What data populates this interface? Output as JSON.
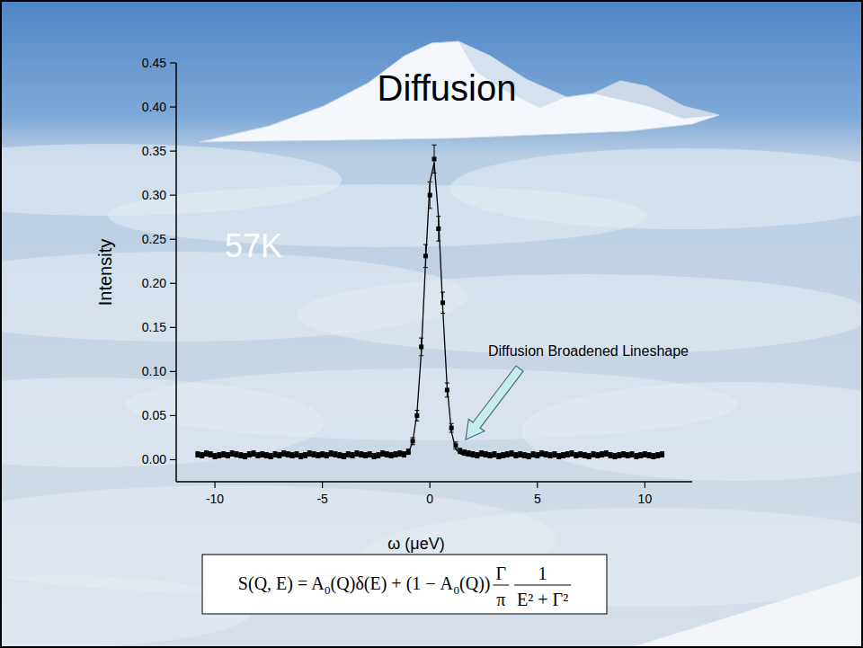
{
  "chart_data": {
    "type": "scatter",
    "title": "Diffusion",
    "x_label": "ω (μeV)",
    "y_label": "Intensity",
    "annotations": [
      {
        "text": "57K"
      },
      {
        "text": "Diffusion Broadened Lineshape"
      }
    ],
    "formula": {
      "lhs": "S(Q, E) = A",
      "sub1": "0",
      "mid": "(Q)δ(E) + (1 − A",
      "sub2": "0",
      "mid2": "(Q))",
      "frac1_num": "Γ",
      "frac1_den": "π",
      "frac2_num": "1",
      "frac2_den": "E² + Γ²"
    },
    "xlim": [
      -11.8,
      12.2
    ],
    "ylim": [
      -0.025,
      0.45
    ],
    "xticks": [
      -10,
      -5,
      0,
      5,
      10
    ],
    "yticks": [
      {
        "value": 0,
        "label": "0.00"
      },
      0.05,
      {
        "value": 0.1,
        "label": "0.10"
      },
      0.15,
      {
        "value": 0.2,
        "label": "0.20"
      },
      0.25,
      {
        "value": 0.3,
        "label": "0.30"
      },
      0.35,
      {
        "value": 0.4,
        "label": "0.40"
      },
      0.45
    ],
    "grid": false,
    "x": [
      -10.8,
      -10.6,
      -10.4,
      -10.2,
      -10,
      -9.8,
      -9.6,
      -9.4,
      -9.2,
      -9,
      -8.8,
      -8.6,
      -8.4,
      -8.2,
      -8,
      -7.8,
      -7.6,
      -7.4,
      -7.2,
      -7,
      -6.8,
      -6.6,
      -6.4,
      -6.2,
      -6,
      -5.8,
      -5.6,
      -5.4,
      -5.2,
      -5,
      -4.8,
      -4.6,
      -4.4,
      -4.2,
      -4,
      -3.8,
      -3.6,
      -3.4,
      -3.2,
      -3,
      -2.8,
      -2.6,
      -2.4,
      -2.2,
      -2,
      -1.8,
      -1.6,
      -1.4,
      -1.2,
      -1,
      -0.8,
      -0.6,
      -0.4,
      -0.2,
      0,
      0.2,
      0.4,
      0.6,
      0.8,
      1,
      1.2,
      1.4,
      1.6,
      1.8,
      2,
      2.2,
      2.4,
      2.6,
      2.8,
      3,
      3.2,
      3.4,
      3.6,
      3.8,
      4,
      4.2,
      4.4,
      4.6,
      4.8,
      5,
      5.2,
      5.4,
      5.6,
      5.8,
      6,
      6.2,
      6.4,
      6.6,
      6.8,
      7,
      7.2,
      7.4,
      7.6,
      7.8,
      8,
      8.2,
      8.4,
      8.6,
      8.8,
      9,
      9.2,
      9.4,
      9.6,
      9.8,
      10,
      10.2,
      10.4,
      10.6,
      10.8
    ],
    "series": [
      {
        "type": "scatter",
        "marker": "square",
        "color": "#000000",
        "values": [
          0.006,
          0.005,
          0.007,
          0.006,
          0.004,
          0.005,
          0.006,
          0.005,
          0.007,
          0.006,
          0.005,
          0.004,
          0.006,
          0.007,
          0.005,
          0.006,
          0.005,
          0.004,
          0.006,
          0.005,
          0.007,
          0.006,
          0.005,
          0.006,
          0.004,
          0.005,
          0.007,
          0.006,
          0.005,
          0.006,
          0.005,
          0.007,
          0.006,
          0.005,
          0.004,
          0.006,
          0.005,
          0.007,
          0.006,
          0.005,
          0.006,
          0.004,
          0.005,
          0.007,
          0.006,
          0.005,
          0.006,
          0.007,
          0.006,
          0.009,
          0.021,
          0.05,
          0.128,
          0.231,
          0.3,
          0.341,
          0.262,
          0.178,
          0.079,
          0.036,
          0.016,
          0.01,
          0.008,
          0.007,
          0.006,
          0.005,
          0.007,
          0.006,
          0.005,
          0.006,
          0.004,
          0.005,
          0.006,
          0.007,
          0.005,
          0.006,
          0.005,
          0.004,
          0.006,
          0.005,
          0.007,
          0.006,
          0.005,
          0.006,
          0.004,
          0.005,
          0.006,
          0.007,
          0.005,
          0.006,
          0.005,
          0.004,
          0.006,
          0.005,
          0.006,
          0.007,
          0.005,
          0.004,
          0.005,
          0.006,
          0.005,
          0.006,
          0.004,
          0.005,
          0.006,
          0.005,
          0.004,
          0.005,
          0.006
        ],
        "errors": [
          0.003,
          0.003,
          0.003,
          0.003,
          0.003,
          0.003,
          0.003,
          0.003,
          0.003,
          0.003,
          0.003,
          0.003,
          0.003,
          0.003,
          0.003,
          0.003,
          0.003,
          0.003,
          0.003,
          0.003,
          0.003,
          0.003,
          0.003,
          0.003,
          0.003,
          0.003,
          0.003,
          0.003,
          0.003,
          0.003,
          0.003,
          0.003,
          0.003,
          0.003,
          0.003,
          0.003,
          0.003,
          0.003,
          0.003,
          0.003,
          0.003,
          0.003,
          0.003,
          0.003,
          0.003,
          0.003,
          0.003,
          0.003,
          0.003,
          0.003,
          0.004,
          0.006,
          0.01,
          0.013,
          0.015,
          0.016,
          0.014,
          0.012,
          0.008,
          0.005,
          0.004,
          0.003,
          0.003,
          0.003,
          0.003,
          0.003,
          0.003,
          0.003,
          0.003,
          0.003,
          0.003,
          0.003,
          0.003,
          0.003,
          0.003,
          0.003,
          0.003,
          0.003,
          0.003,
          0.003,
          0.003,
          0.003,
          0.003,
          0.003,
          0.003,
          0.003,
          0.003,
          0.003,
          0.003,
          0.003,
          0.003,
          0.003,
          0.003,
          0.003,
          0.003,
          0.003,
          0.003,
          0.003,
          0.003,
          0.003,
          0.003,
          0.003,
          0.003,
          0.003,
          0.003,
          0.003,
          0.003,
          0.003,
          0.003
        ]
      },
      {
        "type": "line",
        "line_style": "solid",
        "color": "#000000",
        "values": [
          0.005,
          0.005,
          0.005,
          0.005,
          0.005,
          0.005,
          0.005,
          0.005,
          0.005,
          0.005,
          0.005,
          0.005,
          0.005,
          0.005,
          0.005,
          0.005,
          0.005,
          0.005,
          0.005,
          0.005,
          0.005,
          0.005,
          0.005,
          0.005,
          0.005,
          0.005,
          0.005,
          0.005,
          0.005,
          0.005,
          0.005,
          0.005,
          0.005,
          0.005,
          0.005,
          0.005,
          0.005,
          0.005,
          0.005,
          0.005,
          0.005,
          0.005,
          0.005,
          0.005,
          0.005,
          0.005,
          0.005,
          0.005,
          0.005,
          0.008,
          0.02,
          0.053,
          0.122,
          0.224,
          0.315,
          0.337,
          0.275,
          0.171,
          0.083,
          0.032,
          0.012,
          0.007,
          0.005,
          0.005,
          0.005,
          0.005,
          0.005,
          0.005,
          0.005,
          0.005,
          0.005,
          0.005,
          0.005,
          0.005,
          0.005,
          0.005,
          0.005,
          0.005,
          0.005,
          0.005,
          0.005,
          0.005,
          0.005,
          0.005,
          0.005,
          0.005,
          0.005,
          0.005,
          0.005,
          0.005,
          0.005,
          0.005,
          0.005,
          0.005,
          0.005,
          0.005,
          0.005,
          0.005,
          0.005,
          0.005,
          0.005,
          0.005,
          0.005,
          0.005,
          0.005,
          0.005,
          0.005,
          0.005,
          0.005
        ]
      }
    ]
  }
}
